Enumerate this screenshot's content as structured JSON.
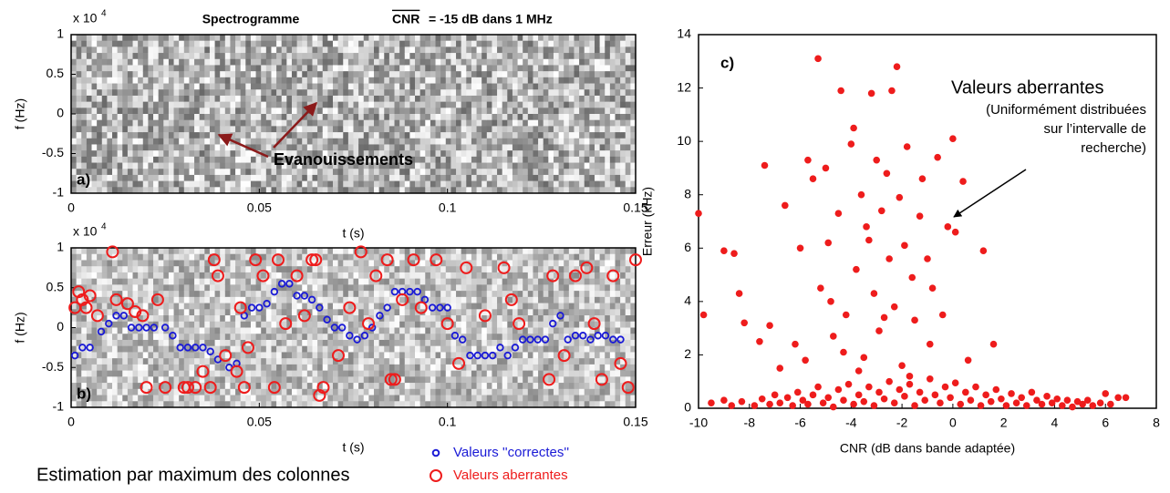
{
  "chart_data": [
    {
      "type": "spectrogram",
      "title": "Spectrogramme",
      "cnr_label": "CNR",
      "cnr_text": "= -15 dB dans 1 MHz",
      "panel_label": "a)",
      "xlabel": "t (s)",
      "ylabel": "f (Hz)",
      "y_multiplier_base": "x 10",
      "y_multiplier_exponent": "4",
      "xlim": [
        0,
        0.15
      ],
      "xticks": [
        0,
        0.05,
        0.1,
        0.15
      ],
      "ylim": [
        -1,
        1
      ],
      "yticks": [
        -1,
        -0.5,
        0,
        0.5,
        1
      ],
      "annotation": "Evanouissements",
      "annotation_color": "#8b1a1a"
    },
    {
      "type": "scatter",
      "panel_label": "b)",
      "xlabel": "t (s)",
      "ylabel": "f (Hz)",
      "y_multiplier_base": "x 10",
      "y_multiplier_exponent": "4",
      "xlim": [
        0,
        0.15
      ],
      "xticks": [
        0,
        0.05,
        0.1,
        0.15
      ],
      "ylim": [
        -1,
        1
      ],
      "yticks": [
        -1,
        -0.5,
        0,
        0.5,
        1
      ],
      "background": "spectrogram",
      "legend_title": "Estimation par maximum des colonnes",
      "series": [
        {
          "name": "Valeurs ''correctes''",
          "color": "#1a1ad6",
          "marker": "open-small",
          "x": [
            0.001,
            0.003,
            0.005,
            0.008,
            0.01,
            0.012,
            0.014,
            0.016,
            0.018,
            0.02,
            0.022,
            0.025,
            0.027,
            0.029,
            0.031,
            0.033,
            0.035,
            0.037,
            0.039,
            0.042,
            0.044,
            0.046,
            0.048,
            0.05,
            0.052,
            0.054,
            0.056,
            0.058,
            0.06,
            0.062,
            0.064,
            0.066,
            0.068,
            0.07,
            0.072,
            0.074,
            0.076,
            0.078,
            0.08,
            0.082,
            0.084,
            0.086,
            0.088,
            0.09,
            0.092,
            0.094,
            0.096,
            0.098,
            0.1,
            0.102,
            0.104,
            0.106,
            0.108,
            0.11,
            0.112,
            0.114,
            0.116,
            0.118,
            0.12,
            0.122,
            0.124,
            0.126,
            0.128,
            0.13,
            0.132,
            0.134,
            0.136,
            0.138,
            0.14,
            0.142,
            0.144,
            0.146
          ],
          "values": [
            -0.35,
            -0.25,
            -0.25,
            -0.05,
            0.05,
            0.15,
            0.15,
            0,
            0,
            0,
            0,
            0,
            -0.1,
            -0.25,
            -0.25,
            -0.25,
            -0.25,
            -0.3,
            -0.4,
            -0.5,
            -0.45,
            0.15,
            0.25,
            0.25,
            0.3,
            0.45,
            0.55,
            0.55,
            0.4,
            0.4,
            0.35,
            0.25,
            0.1,
            0,
            0,
            -0.1,
            -0.15,
            -0.1,
            0,
            0.15,
            0.25,
            0.45,
            0.45,
            0.45,
            0.45,
            0.35,
            0.25,
            0.25,
            0.25,
            -0.1,
            -0.15,
            -0.35,
            -0.35,
            -0.35,
            -0.35,
            -0.25,
            -0.35,
            -0.25,
            -0.15,
            -0.15,
            -0.15,
            -0.15,
            0.05,
            0.15,
            -0.15,
            -0.1,
            -0.1,
            -0.15,
            -0.1,
            -0.1,
            -0.15,
            -0.15
          ]
        },
        {
          "name": "Valeurs aberrantes",
          "color": "#ee1c1c",
          "marker": "open-large",
          "x": [
            0.001,
            0.002,
            0.003,
            0.004,
            0.005,
            0.007,
            0.011,
            0.012,
            0.015,
            0.017,
            0.019,
            0.02,
            0.023,
            0.025,
            0.03,
            0.031,
            0.033,
            0.035,
            0.037,
            0.038,
            0.039,
            0.041,
            0.044,
            0.045,
            0.046,
            0.047,
            0.049,
            0.051,
            0.054,
            0.055,
            0.057,
            0.06,
            0.062,
            0.064,
            0.065,
            0.066,
            0.067,
            0.071,
            0.074,
            0.077,
            0.079,
            0.081,
            0.084,
            0.085,
            0.086,
            0.088,
            0.091,
            0.093,
            0.097,
            0.1,
            0.103,
            0.105,
            0.11,
            0.115,
            0.117,
            0.119,
            0.127,
            0.128,
            0.131,
            0.134,
            0.137,
            0.139,
            0.141,
            0.144,
            0.146,
            0.148,
            0.15
          ],
          "values": [
            0.25,
            0.45,
            0.35,
            0.25,
            0.4,
            0.15,
            0.95,
            0.35,
            0.3,
            0.2,
            0.15,
            -0.75,
            0.35,
            -0.75,
            -0.75,
            -0.75,
            -0.75,
            -0.55,
            -0.75,
            0.85,
            0.65,
            -0.35,
            -0.55,
            0.25,
            -0.75,
            -0.25,
            0.85,
            0.65,
            -0.75,
            0.85,
            0.05,
            0.65,
            0.15,
            0.85,
            0.85,
            -0.85,
            -0.75,
            -0.35,
            0.25,
            0.95,
            0.05,
            0.65,
            0.85,
            -0.65,
            -0.65,
            0.35,
            0.85,
            0.25,
            0.85,
            0.05,
            -0.45,
            0.75,
            0.15,
            0.75,
            0.35,
            0.05,
            -0.65,
            0.65,
            -0.35,
            0.65,
            0.75,
            0.05,
            -0.65,
            0.65,
            -0.45,
            -0.75,
            0.85
          ]
        }
      ]
    },
    {
      "type": "scatter",
      "panel_label": "c)",
      "xlabel": "CNR (dB dans bande adaptée)",
      "ylabel": "Erreur (kHz)",
      "xlim": [
        -10,
        8
      ],
      "xticks": [
        -10,
        -8,
        -6,
        -4,
        -2,
        0,
        2,
        4,
        6,
        8
      ],
      "ylim": [
        0,
        14
      ],
      "yticks": [
        0,
        2,
        4,
        6,
        8,
        10,
        12,
        14
      ],
      "annotation_title": "Valeurs aberrantes",
      "annotation_lines": [
        "(Uniformément distribuées",
        "sur l’intervalle de",
        "recherche)"
      ],
      "series": [
        {
          "color": "#ee1c1c",
          "marker": "dot",
          "x": [
            -10,
            -9.8,
            -9,
            -8.6,
            -8.4,
            -8.2,
            -7.6,
            -7.4,
            -7.2,
            -6.6,
            -6.2,
            -6,
            -5.7,
            -5.5,
            -5.3,
            -5.2,
            -5,
            -4.9,
            -4.7,
            -4.5,
            -4.4,
            -4.2,
            -4,
            -3.9,
            -3.8,
            -3.6,
            -3.5,
            -3.4,
            -3.2,
            -3.1,
            -3,
            -2.9,
            -2.8,
            -2.6,
            -2.5,
            -2.4,
            -2.3,
            -2.2,
            -2.1,
            -2,
            -1.9,
            -1.8,
            -1.6,
            -1.5,
            -1.3,
            -1.2,
            -1,
            -0.9,
            -0.8,
            -0.6,
            -0.4,
            -0.2,
            0,
            0.1,
            0.4,
            0.6,
            1.2,
            1.6,
            -4.8,
            -3.3,
            -2.7,
            -1.7,
            -3.7,
            -4.3,
            -5.8,
            -6.8,
            -9.5,
            -9,
            -8.7,
            -8.3,
            -7.8,
            -7.5,
            -7.2,
            -7,
            -6.8,
            -6.5,
            -6.3,
            -6.1,
            -5.9,
            -5.7,
            -5.5,
            -5.3,
            -5.1,
            -4.9,
            -4.7,
            -4.5,
            -4.3,
            -4.1,
            -3.9,
            -3.7,
            -3.5,
            -3.3,
            -3.1,
            -2.9,
            -2.7,
            -2.5,
            -2.3,
            -2.1,
            -1.9,
            -1.7,
            -1.5,
            -1.3,
            -1.1,
            -0.9,
            -0.7,
            -0.5,
            -0.3,
            -0.1,
            0.1,
            0.3,
            0.5,
            0.7,
            0.9,
            1.1,
            1.3,
            1.5,
            1.7,
            1.9,
            2.1,
            2.3,
            2.5,
            2.7,
            2.9,
            3.1,
            3.3,
            3.5,
            3.7,
            3.9,
            4.1,
            4.3,
            4.5,
            4.7,
            4.9,
            5.1,
            5.3,
            5.5,
            5.8,
            6,
            6.2,
            6.5,
            6.8
          ],
          "values": [
            7.3,
            3.5,
            5.9,
            5.8,
            4.3,
            3.2,
            2.5,
            9.1,
            3.1,
            7.6,
            2.4,
            6,
            9.3,
            8.6,
            13.1,
            4.5,
            9,
            6.2,
            2.7,
            7.3,
            11.9,
            3.5,
            9.9,
            10.5,
            5.2,
            8,
            1.9,
            6.8,
            11.8,
            4.3,
            9.3,
            2.9,
            7.4,
            8.8,
            5.6,
            11.9,
            3.8,
            12.8,
            7.9,
            1.6,
            6.1,
            9.8,
            4.9,
            3.3,
            7.2,
            8.6,
            5.6,
            2.4,
            4.5,
            9.4,
            3.5,
            6.8,
            10.1,
            6.6,
            8.5,
            1.8,
            5.9,
            2.4,
            4,
            6.3,
            3.4,
            1.2,
            1.4,
            2.1,
            1.8,
            1.5,
            0.2,
            0.3,
            0.1,
            0.25,
            0.1,
            0.35,
            0.15,
            0.5,
            0.2,
            0.4,
            0.1,
            0.6,
            0.3,
            0.15,
            0.5,
            0.8,
            0.2,
            0.4,
            0.05,
            0.7,
            0.3,
            0.9,
            0.15,
            0.5,
            0.25,
            0.8,
            0.1,
            0.6,
            0.35,
            1,
            0.2,
            0.7,
            0.45,
            0.9,
            0.1,
            0.6,
            0.3,
            1.1,
            0.5,
            0.2,
            0.8,
            0.4,
            0.95,
            0.15,
            0.6,
            0.3,
            0.8,
            0.1,
            0.5,
            0.25,
            0.7,
            0.35,
            0.1,
            0.55,
            0.2,
            0.4,
            0.1,
            0.6,
            0.3,
            0.15,
            0.45,
            0.2,
            0.35,
            0.1,
            0.3,
            0.05,
            0.25,
            0.15,
            0.3,
            0.1,
            0.2,
            0.55,
            0.15,
            0.4,
            0.4
          ]
        }
      ]
    }
  ]
}
